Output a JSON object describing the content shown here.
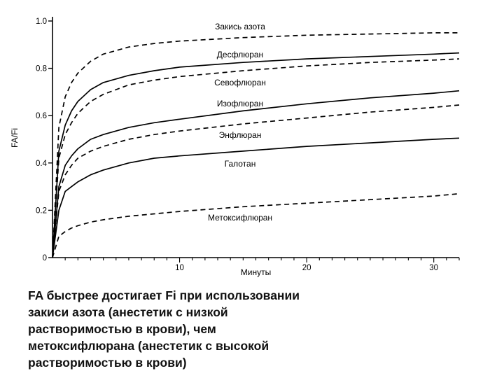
{
  "chart_data": {
    "type": "line",
    "xlabel": "Минуты",
    "ylabel": "FA/Fi",
    "xlim": [
      0,
      32
    ],
    "ylim": [
      0,
      1.0
    ],
    "x_ticks": [
      10,
      20,
      30
    ],
    "y_ticks": [
      {
        "value": 0,
        "label": "0"
      },
      {
        "value": 0.2,
        "label": "0.2"
      },
      {
        "value": 0.4,
        "label": "0.4"
      },
      {
        "value": 0.6,
        "label": "0.6"
      },
      {
        "value": 0.8,
        "label": "0.8"
      },
      {
        "value": 1.0,
        "label": "1.0"
      }
    ],
    "grid": false,
    "legend": "inline labels",
    "series": [
      {
        "name": "Закись азота",
        "style": "dashed",
        "x": [
          0,
          0.5,
          1,
          1.5,
          2,
          3,
          4,
          6,
          8,
          10,
          15,
          20,
          25,
          30,
          32
        ],
        "y": [
          0,
          0.55,
          0.68,
          0.74,
          0.78,
          0.83,
          0.86,
          0.89,
          0.905,
          0.915,
          0.93,
          0.94,
          0.945,
          0.95,
          0.95
        ]
      },
      {
        "name": "Десфлюран",
        "style": "solid",
        "x": [
          0,
          0.5,
          1,
          1.5,
          2,
          3,
          4,
          6,
          8,
          10,
          15,
          20,
          25,
          30,
          32
        ],
        "y": [
          0,
          0.45,
          0.56,
          0.62,
          0.66,
          0.71,
          0.74,
          0.77,
          0.79,
          0.805,
          0.825,
          0.84,
          0.85,
          0.86,
          0.865
        ]
      },
      {
        "name": "Севофлюран",
        "style": "dashed",
        "x": [
          0,
          0.5,
          1,
          1.5,
          2,
          3,
          4,
          6,
          8,
          10,
          15,
          20,
          25,
          30,
          32
        ],
        "y": [
          0,
          0.42,
          0.52,
          0.57,
          0.61,
          0.66,
          0.69,
          0.73,
          0.75,
          0.765,
          0.79,
          0.81,
          0.825,
          0.835,
          0.84
        ]
      },
      {
        "name": "Изофлюран",
        "style": "solid",
        "x": [
          0,
          0.5,
          1,
          1.5,
          2,
          3,
          4,
          6,
          8,
          10,
          15,
          20,
          25,
          30,
          32
        ],
        "y": [
          0,
          0.3,
          0.39,
          0.43,
          0.46,
          0.5,
          0.52,
          0.55,
          0.57,
          0.585,
          0.62,
          0.65,
          0.675,
          0.695,
          0.705
        ]
      },
      {
        "name": "Энфлюран",
        "style": "dashed",
        "x": [
          0,
          0.5,
          1,
          1.5,
          2,
          3,
          4,
          6,
          8,
          10,
          15,
          20,
          25,
          30,
          32
        ],
        "y": [
          0,
          0.28,
          0.35,
          0.39,
          0.42,
          0.45,
          0.47,
          0.5,
          0.52,
          0.535,
          0.565,
          0.59,
          0.615,
          0.635,
          0.645
        ]
      },
      {
        "name": "Галотан",
        "style": "solid",
        "x": [
          0,
          0.5,
          1,
          1.5,
          2,
          3,
          4,
          6,
          8,
          10,
          15,
          20,
          25,
          30,
          32
        ],
        "y": [
          0,
          0.2,
          0.28,
          0.3,
          0.32,
          0.35,
          0.37,
          0.4,
          0.42,
          0.43,
          0.45,
          0.47,
          0.485,
          0.5,
          0.505
        ]
      },
      {
        "name": "Метоксифлюран",
        "style": "dashed",
        "x": [
          0,
          0.5,
          1,
          1.5,
          2,
          3,
          4,
          6,
          8,
          10,
          15,
          20,
          25,
          30,
          32
        ],
        "y": [
          0,
          0.09,
          0.11,
          0.125,
          0.135,
          0.15,
          0.16,
          0.175,
          0.185,
          0.195,
          0.215,
          0.23,
          0.245,
          0.26,
          0.27
        ]
      }
    ]
  },
  "caption": "FA быстрее достигает Fi при использовании закиси азота (анестетик с низкой растворимостью в крови), чем метоксифлюрана (анестетик с высокой растворимостью в крови)"
}
